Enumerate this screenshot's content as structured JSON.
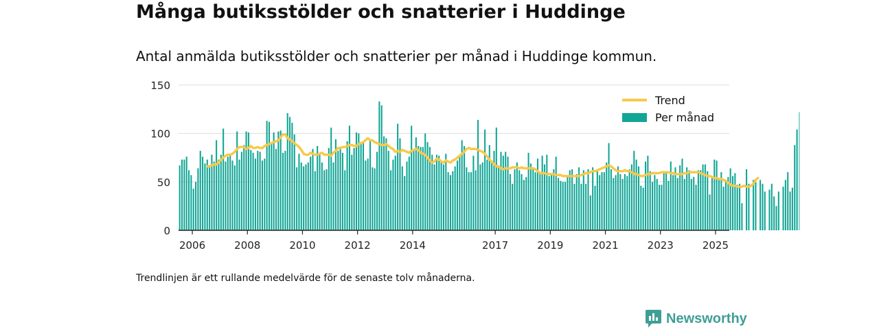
{
  "title": "Många butiksstölder och snatterier i Huddinge",
  "subtitle": "Antal anmälda butiksstölder och snatterier per månad i Huddinge kommun.",
  "footnote": "Trendlinjen är ett rullande medelvärde för de senaste tolv månaderna.",
  "brand": "Newsworthy",
  "colors": {
    "bar": "#11a596",
    "trend": "#f8c94a",
    "grid": "#dddddd",
    "axis": "#222222",
    "brand": "#3f9e95"
  },
  "chart_data": {
    "type": "bar",
    "title": "",
    "xlabel": "",
    "ylabel": "",
    "ylim": [
      0,
      150
    ],
    "xlim": [
      2005.5,
      2025.5
    ],
    "grid": true,
    "legend_position": "top-right",
    "yticks": [
      0,
      50,
      100,
      150
    ],
    "xticks": [
      2006,
      2008,
      2010,
      2012,
      2014,
      2017,
      2019,
      2021,
      2023,
      2025
    ],
    "series": [
      {
        "name": "Per månad",
        "type": "bar",
        "start": "2006-01",
        "values": [
          67,
          73,
          73,
          76,
          62,
          57,
          43,
          50,
          64,
          82,
          76,
          69,
          73,
          65,
          78,
          71,
          93,
          73,
          78,
          105,
          71,
          76,
          78,
          72,
          67,
          102,
          73,
          81,
          88,
          102,
          101,
          83,
          80,
          74,
          82,
          81,
          72,
          74,
          113,
          112,
          90,
          101,
          84,
          102,
          103,
          80,
          82,
          121,
          117,
          111,
          99,
          65,
          79,
          70,
          66,
          68,
          70,
          76,
          84,
          61,
          87,
          79,
          70,
          62,
          63,
          85,
          106,
          70,
          94,
          82,
          85,
          80,
          62,
          92,
          108,
          78,
          85,
          101,
          100,
          90,
          90,
          72,
          74,
          93,
          65,
          64,
          81,
          133,
          129,
          97,
          95,
          82,
          62,
          73,
          77,
          110,
          95,
          66,
          56,
          71,
          76,
          108,
          82,
          96,
          87,
          86,
          86,
          100,
          91,
          86,
          78,
          68,
          78,
          77,
          70,
          68,
          79,
          60,
          57,
          61,
          66,
          72,
          77,
          93,
          87,
          65,
          60,
          60,
          77,
          62,
          114,
          68,
          70,
          104,
          73,
          88,
          71,
          82,
          106,
          65,
          81,
          77,
          81,
          76,
          58,
          48,
          63,
          70,
          62,
          58,
          52,
          55,
          80,
          69,
          65,
          60,
          74,
          60,
          77,
          68,
          78,
          56,
          58,
          63,
          76,
          54,
          51,
          50,
          50,
          55,
          62,
          63,
          48,
          58,
          65,
          48,
          62,
          48,
          63,
          36,
          65,
          46,
          61,
          57,
          60,
          60,
          70,
          90,
          63,
          54,
          57,
          66,
          58,
          53,
          58,
          56,
          63,
          68,
          82,
          73,
          66,
          46,
          44,
          71,
          77,
          61,
          50,
          57,
          53,
          47,
          47,
          59,
          60,
          51,
          71,
          57,
          65,
          54,
          67,
          74,
          53,
          65,
          62,
          53,
          55,
          47,
          62,
          62,
          68,
          68,
          61,
          37,
          56,
          73,
          72,
          52,
          60,
          45,
          52,
          55,
          64,
          56,
          59,
          47,
          48,
          28,
          null,
          63,
          48,
          null,
          52,
          50,
          null,
          52,
          48,
          40,
          null,
          42,
          48,
          35,
          25,
          40,
          null,
          45,
          52,
          60,
          40,
          44,
          88,
          104,
          122
        ],
        "highlight_last": 1
      },
      {
        "name": "Trend",
        "type": "line",
        "start": "2007-01",
        "values": [
          66,
          66,
          67,
          68,
          68,
          70,
          73,
          75,
          77,
          78,
          78,
          79,
          81,
          84,
          86,
          86,
          86,
          84,
          85,
          87,
          85,
          85,
          86,
          85,
          85,
          87,
          88,
          89,
          90,
          91,
          92,
          93,
          96,
          99,
          99,
          95,
          94,
          92,
          90,
          88,
          86,
          83,
          79,
          78,
          78,
          80,
          79,
          78,
          78,
          79,
          80,
          78,
          78,
          78,
          77,
          80,
          82,
          85,
          85,
          86,
          86,
          87,
          88,
          88,
          87,
          87,
          89,
          90,
          91,
          93,
          95,
          93,
          93,
          91,
          90,
          89,
          88,
          88,
          89,
          87,
          85,
          84,
          81,
          82,
          81,
          83,
          82,
          81,
          80,
          82,
          83,
          84,
          83,
          80,
          79,
          78,
          75,
          72,
          70,
          71,
          74,
          73,
          71,
          70,
          72,
          71,
          70,
          72,
          73,
          75,
          77,
          79,
          81,
          84,
          85,
          84,
          84,
          84,
          83,
          82,
          81,
          79,
          76,
          73,
          71,
          68,
          66,
          66,
          64,
          63,
          64,
          64,
          64,
          65,
          65,
          65,
          64,
          65,
          64,
          64,
          64,
          64,
          64,
          63,
          61,
          59,
          59,
          59,
          58,
          58,
          58,
          58,
          57,
          57,
          57,
          56,
          56,
          56,
          56,
          56,
          56,
          56,
          56,
          57,
          58,
          59,
          59,
          60,
          61,
          61,
          62,
          63,
          64,
          65,
          66,
          67,
          66,
          64,
          62,
          61,
          61,
          61,
          62,
          61,
          61,
          60,
          58,
          58,
          57,
          56,
          56,
          57,
          58,
          58,
          59,
          59,
          59,
          59,
          60,
          60,
          60,
          60,
          59,
          59,
          58,
          58,
          58,
          58,
          59,
          59,
          60,
          60,
          60,
          60,
          60,
          59,
          58,
          57,
          56,
          56,
          55,
          54,
          54,
          53,
          53,
          52,
          51,
          49,
          47,
          46,
          46,
          45,
          45,
          45,
          46,
          45,
          45,
          46,
          48,
          52,
          54
        ]
      }
    ]
  }
}
